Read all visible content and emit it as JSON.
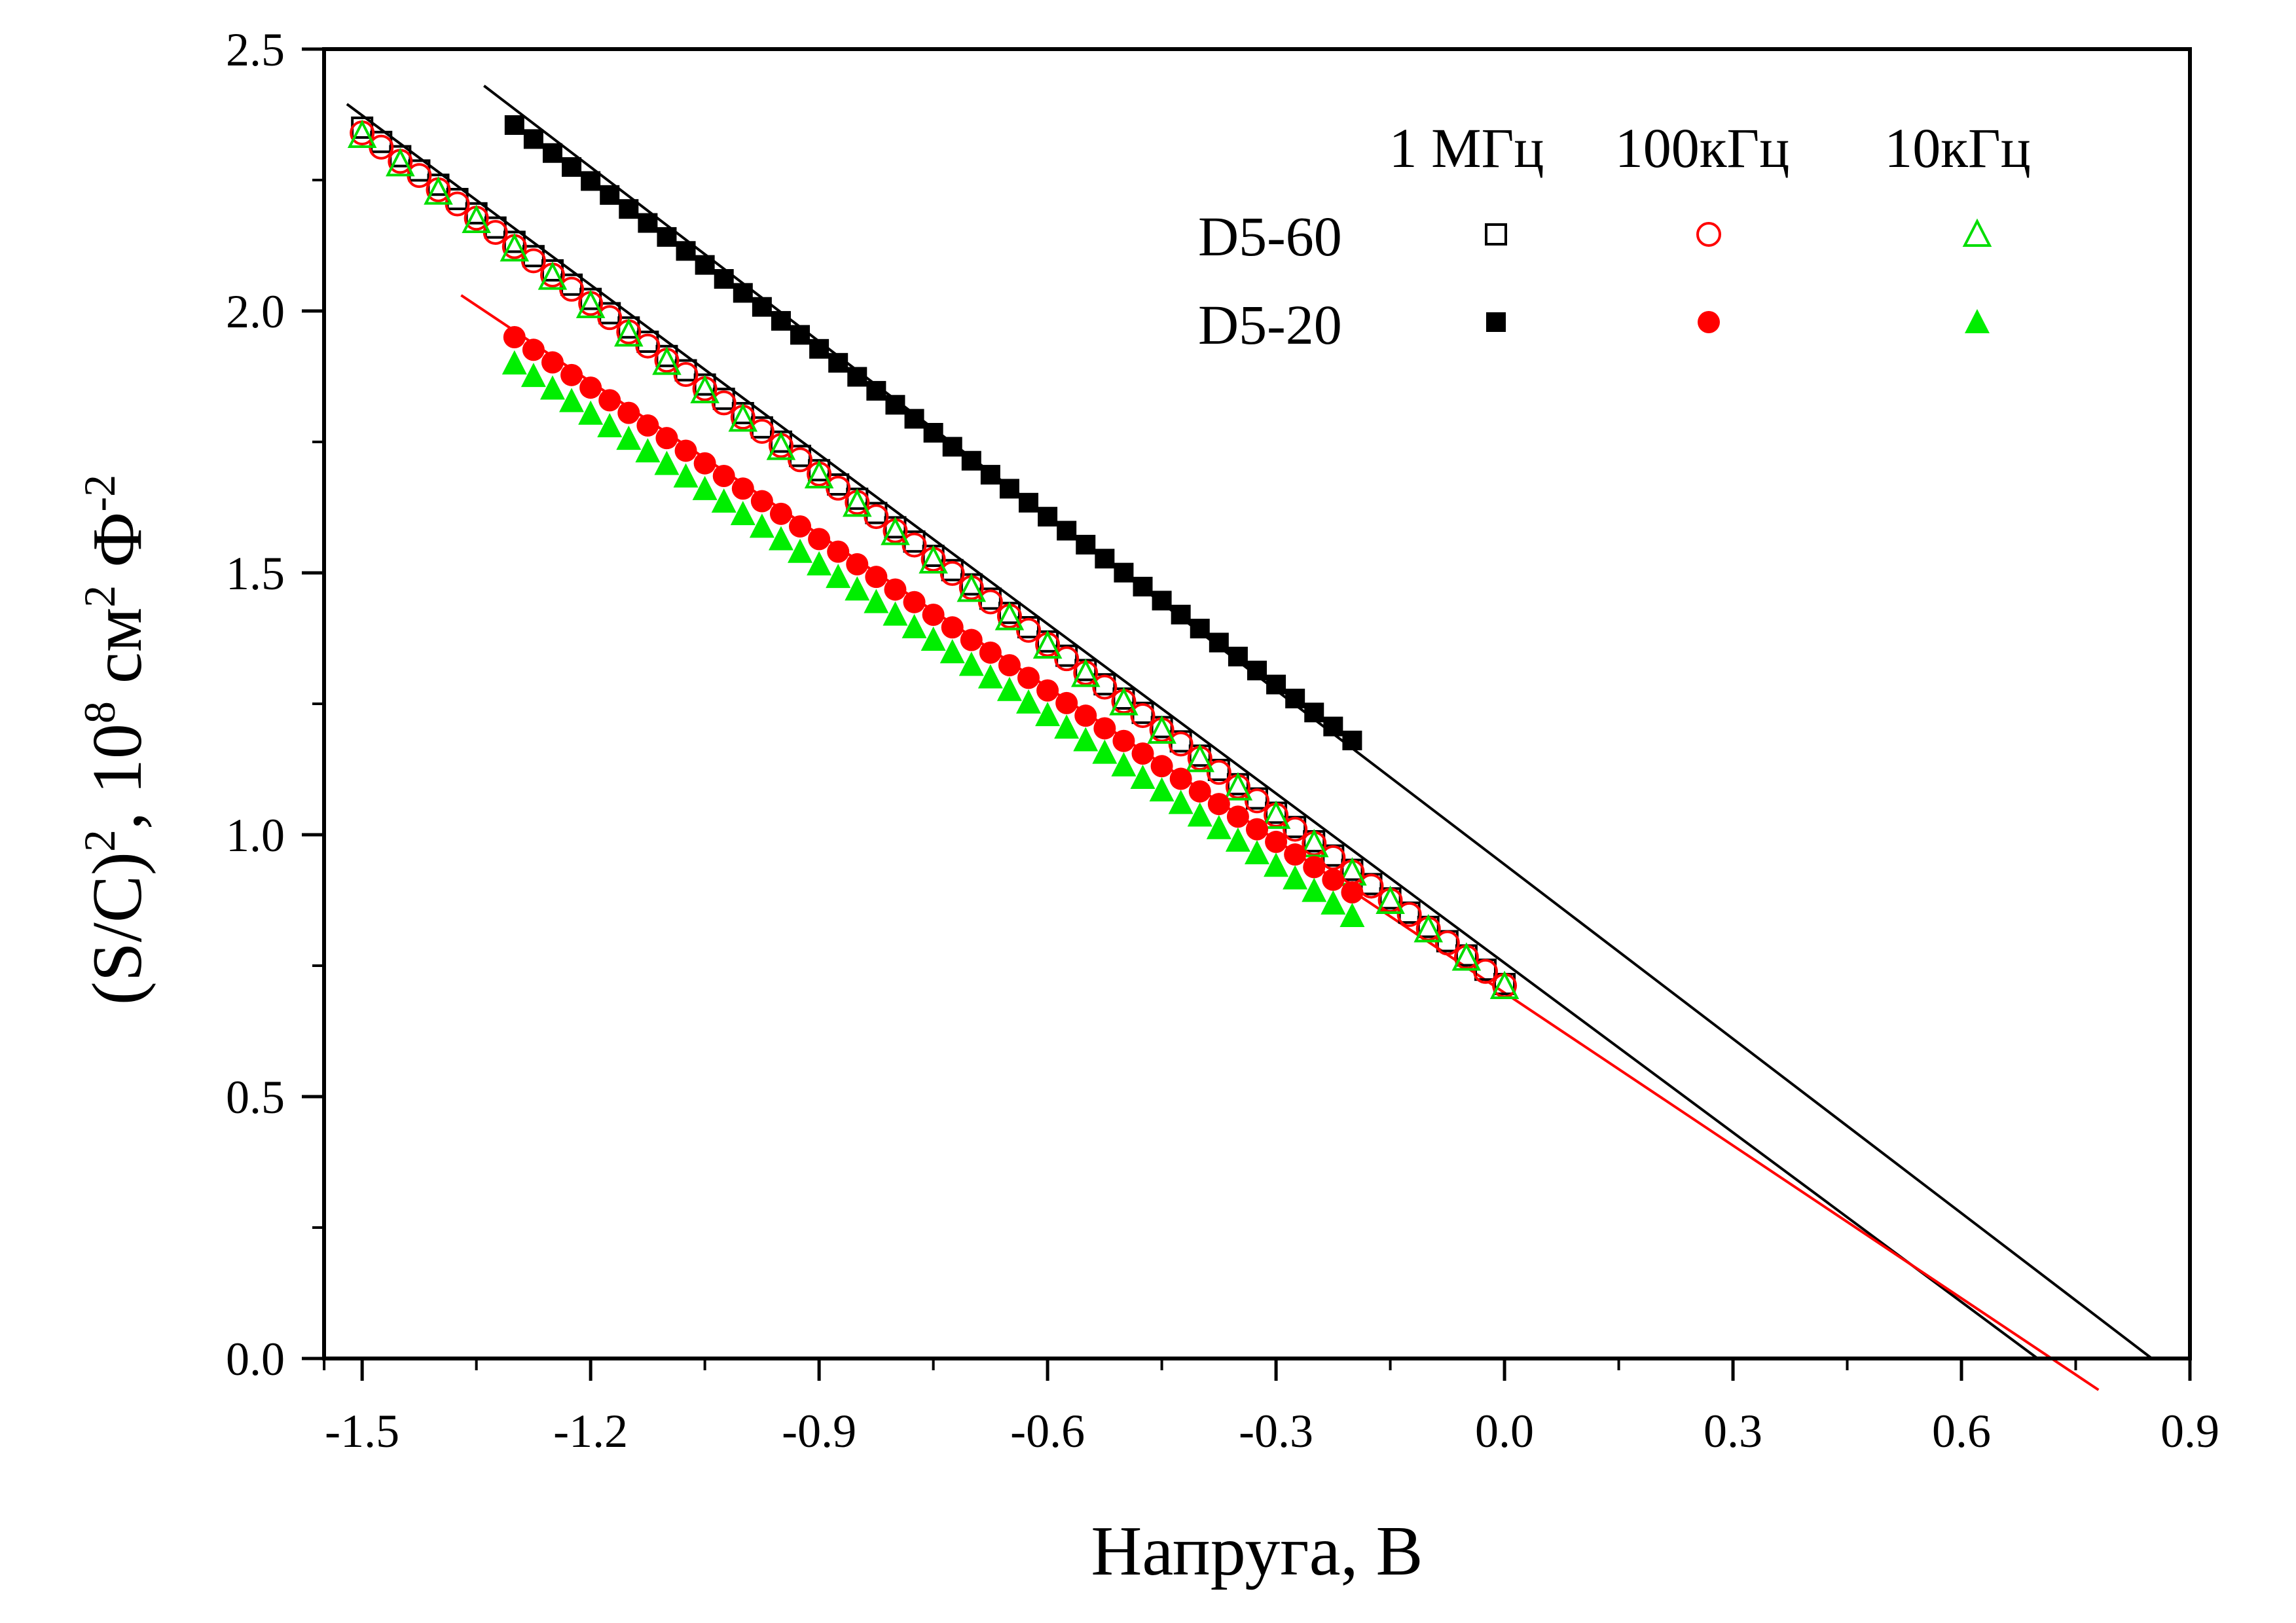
{
  "chart_data": {
    "type": "scatter",
    "xlabel": "Напруга, В",
    "ylabel": {
      "parts": [
        "(S/C)",
        "2",
        ", 10",
        "8",
        " см",
        "2",
        " Ф",
        "-2"
      ]
    },
    "xlim": [
      -1.55,
      0.9
    ],
    "ylim": [
      0.0,
      2.5
    ],
    "x_ticks": [
      -1.5,
      -1.2,
      -0.9,
      -0.6,
      -0.3,
      0.0,
      0.3,
      0.6,
      0.9
    ],
    "x_tick_labels": [
      "-1.5",
      "-1.2",
      "-0.9",
      "-0.6",
      "-0.3",
      "0.0",
      "0.3",
      "0.6",
      "0.9"
    ],
    "y_ticks": [
      0.0,
      0.5,
      1.0,
      1.5,
      2.0,
      2.5
    ],
    "y_tick_labels": [
      "0.0",
      "0.5",
      "1.0",
      "1.5",
      "2.0",
      "2.5"
    ],
    "grid": false,
    "legend": {
      "placement": "top-right",
      "columns": [
        "1 МГц",
        "100кГц",
        "10кГц"
      ],
      "rows": [
        "D5-60",
        "D5-20"
      ]
    },
    "series": [
      {
        "sample": "D5-60",
        "frequency": "1 МГц",
        "marker": "square",
        "filled": false,
        "color": "#000000",
        "x_start": -1.5,
        "x_end": 0.0,
        "x_step": 0.025,
        "y_start": 2.35,
        "y_end": 0.715
      },
      {
        "sample": "D5-60",
        "frequency": "100кГц",
        "marker": "circle",
        "filled": false,
        "color": "#ff0000",
        "x_start": -1.5,
        "x_end": 0.0,
        "x_step": 0.025,
        "y_start": 2.34,
        "y_end": 0.712
      },
      {
        "sample": "D5-60",
        "frequency": "10кГц",
        "marker": "triangle",
        "filled": false,
        "color": "#00dd00",
        "x_start": -1.5,
        "x_end": 0.0,
        "x_step": 0.05,
        "y_start": 2.335,
        "y_end": 0.71
      },
      {
        "sample": "D5-20",
        "frequency": "1 МГц",
        "marker": "square",
        "filled": true,
        "color": "#000000",
        "x_start": -1.3,
        "x_end": -0.2,
        "x_step": 0.025,
        "y_start": 2.355,
        "y_end": 1.18
      },
      {
        "sample": "D5-20",
        "frequency": "100кГц",
        "marker": "circle",
        "filled": true,
        "color": "#ff0000",
        "x_start": -1.3,
        "x_end": -0.2,
        "x_step": 0.025,
        "y_start": 1.95,
        "y_end": 0.89
      },
      {
        "sample": "D5-20",
        "frequency": "10кГц",
        "marker": "triangle",
        "filled": true,
        "color": "#00ee00",
        "x_start": -1.3,
        "x_end": -0.2,
        "x_step": 0.025,
        "y_start": 1.9,
        "y_end": 0.845
      }
    ],
    "fit_lines": [
      {
        "color": "#000000",
        "x": [
          -1.52,
          0.7
        ],
        "y": [
          2.395,
          0.0
        ]
      },
      {
        "color": "#000000",
        "x": [
          -1.34,
          0.85
        ],
        "y": [
          2.43,
          0.0
        ]
      },
      {
        "color": "#ff0000",
        "x": [
          -1.37,
          0.78
        ],
        "y": [
          2.03,
          -0.06
        ]
      }
    ]
  }
}
